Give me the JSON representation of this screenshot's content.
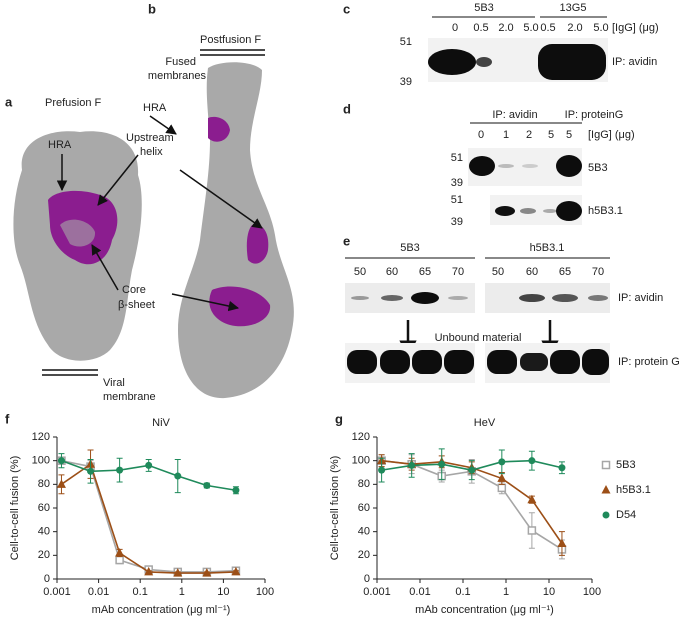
{
  "panel_labels": [
    "a",
    "b",
    "c",
    "d",
    "e",
    "f",
    "g"
  ],
  "structure": {
    "prefusion_title": "Prefusion F",
    "postfusion_title": "Postfusion F",
    "fused_membranes": [
      "Fused",
      "membranes"
    ],
    "hra_a": "HRA",
    "hra_b": "HRA",
    "upstream_helix": [
      "Upstream",
      "helix"
    ],
    "core_sheet": [
      "Core",
      "β-sheet"
    ],
    "viral_membrane": [
      "Viral",
      "membrane"
    ]
  },
  "blot_c": {
    "groups": [
      "5B3",
      "13G5"
    ],
    "lanes": [
      "0",
      "0.5",
      "2.0",
      "5.0",
      "0.5",
      "2.0",
      "5.0"
    ],
    "unit": "[IgG] (μg)",
    "markers": [
      "51",
      "39"
    ],
    "label": "IP: avidin"
  },
  "blot_d": {
    "groups": [
      "IP: avidin",
      "IP: proteinG"
    ],
    "lanes": [
      "0",
      "1",
      "2",
      "5",
      "5"
    ],
    "unit": "[IgG] (μg)",
    "rows": [
      {
        "markers": [
          "51",
          "39"
        ],
        "label": "5B3"
      },
      {
        "markers": [
          "51",
          "39"
        ],
        "label": "h5B3.1"
      }
    ]
  },
  "blot_e": {
    "groups": [
      "5B3",
      "h5B3.1"
    ],
    "lanes": [
      "50",
      "60",
      "65",
      "70",
      "50",
      "60",
      "65",
      "70"
    ],
    "top_label": "IP: avidin",
    "middle_label": "Unbound material",
    "bottom_label": "IP: protein G"
  },
  "chart_data": [
    {
      "type": "line",
      "title": "NiV",
      "x_label": "mAb concentration (μg ml⁻¹)",
      "y_label": "Cell-to-cell fusion (%)",
      "x": [
        0.00128,
        0.0064,
        0.032,
        0.16,
        0.8,
        4,
        20
      ],
      "log_x": true,
      "xlim": [
        0.001,
        100
      ],
      "xticks": [
        0.001,
        0.01,
        0.1,
        1,
        10,
        100
      ],
      "ylim": [
        0,
        120
      ],
      "yticks": [
        0,
        20,
        40,
        60,
        80,
        100,
        120
      ],
      "series": [
        {
          "color": "#a6a6a6",
          "marker": "square",
          "values": [
            100,
            95,
            16,
            8,
            6,
            6,
            7
          ],
          "errors": [
            3,
            5,
            3,
            2,
            2,
            2,
            2
          ]
        },
        {
          "color": "#9c4f17",
          "marker": "triangle",
          "values": [
            80,
            97,
            22,
            6,
            5,
            5,
            6
          ],
          "errors": [
            8,
            12,
            3,
            1,
            1,
            1,
            1
          ]
        },
        {
          "color": "#1f8a5b",
          "marker": "circle",
          "values": [
            100,
            91,
            92,
            96,
            87,
            79,
            75
          ],
          "errors": [
            6,
            10,
            10,
            5,
            14,
            2,
            3
          ]
        }
      ]
    },
    {
      "type": "line",
      "title": "HeV",
      "x_label": "mAb concentration (μg ml⁻¹)",
      "y_label": "Cell-to-cell fusion (%)",
      "x": [
        0.00128,
        0.0064,
        0.032,
        0.16,
        0.8,
        4,
        20
      ],
      "log_x": true,
      "xlim": [
        0.001,
        100
      ],
      "xticks": [
        0.001,
        0.01,
        0.1,
        1,
        10,
        100
      ],
      "ylim": [
        0,
        120
      ],
      "yticks": [
        0,
        20,
        40,
        60,
        80,
        100,
        120
      ],
      "legend": "right",
      "series": [
        {
          "name": "5B3",
          "color": "#a6a6a6",
          "marker": "square",
          "values": [
            100,
            97,
            87,
            91,
            77,
            41,
            25
          ],
          "errors": [
            5,
            8,
            5,
            10,
            5,
            15,
            8
          ]
        },
        {
          "name": "h5B3.1",
          "color": "#9c4f17",
          "marker": "triangle",
          "values": [
            100,
            97,
            99,
            94,
            85,
            67,
            30
          ],
          "errors": [
            5,
            5,
            5,
            5,
            5,
            3,
            10
          ]
        },
        {
          "name": "D54",
          "color": "#1f8a5b",
          "marker": "circle",
          "values": [
            92,
            96,
            97,
            92,
            99,
            100,
            94
          ],
          "errors": [
            10,
            10,
            13,
            8,
            10,
            8,
            5
          ]
        }
      ]
    }
  ]
}
